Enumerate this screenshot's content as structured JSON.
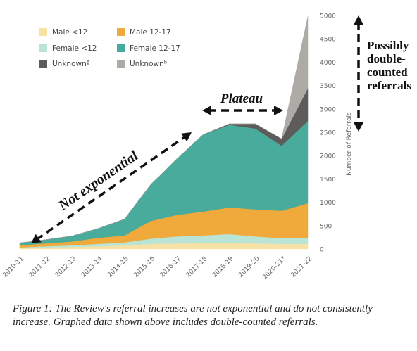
{
  "chart_data": {
    "type": "area",
    "stacked": true,
    "categories": [
      "2010-11",
      "2011-12",
      "2012-13",
      "2013-14",
      "2014-15",
      "2015-16",
      "2016-17",
      "2017-18",
      "2018-19",
      "2019-20",
      "2020-21*",
      "2021-22"
    ],
    "ylim": [
      0,
      5000
    ],
    "yticks": [
      0,
      500,
      1000,
      1500,
      2000,
      2500,
      3000,
      3500,
      4000,
      4500,
      5000
    ],
    "ylabel": "Number of Referrals",
    "y_axis_side": "right",
    "grid": false,
    "legend_position": "top-left",
    "series": [
      {
        "name": "Male <12",
        "color": "#f6e2a6",
        "values": [
          20,
          35,
          45,
          60,
          80,
          110,
          120,
          130,
          140,
          120,
          110,
          110
        ]
      },
      {
        "name": "Female <12",
        "color": "#b9e4d6",
        "values": [
          15,
          25,
          35,
          50,
          60,
          110,
          150,
          160,
          180,
          150,
          120,
          120
        ]
      },
      {
        "name": "Male 12-17",
        "color": "#f0a93b",
        "values": [
          45,
          60,
          80,
          130,
          150,
          380,
          460,
          510,
          570,
          580,
          590,
          750
        ]
      },
      {
        "name": "Female 12-17",
        "color": "#48ab9b",
        "values": [
          50,
          80,
          120,
          200,
          350,
          780,
          1200,
          1650,
          1770,
          1730,
          1390,
          1760
        ]
      },
      {
        "name": "Unknownª",
        "color": "#5e5c5a",
        "values": [
          0,
          0,
          0,
          0,
          0,
          0,
          0,
          0,
          20,
          100,
          150,
          700
        ]
      },
      {
        "name": "Unknownᵇ",
        "color": "#aeaaa6",
        "values": [
          0,
          0,
          0,
          0,
          0,
          0,
          0,
          0,
          0,
          0,
          0,
          1540
        ]
      }
    ],
    "legend_order": [
      0,
      2,
      1,
      3,
      4,
      5
    ],
    "annotations": [
      {
        "text": "Not exponential",
        "from_category": 0,
        "to_category": 7
      },
      {
        "text": "Plateau",
        "from_category": 7,
        "to_category": 10
      },
      {
        "text": "Possibly double-counted referrals",
        "lines": [
          "Possibly",
          "double-",
          "counted",
          "referrals"
        ]
      }
    ]
  },
  "caption": "Figure 1: The Review's referral increases are not exponential and do not consistently increase. Graphed data shown above includes double-counted referrals."
}
